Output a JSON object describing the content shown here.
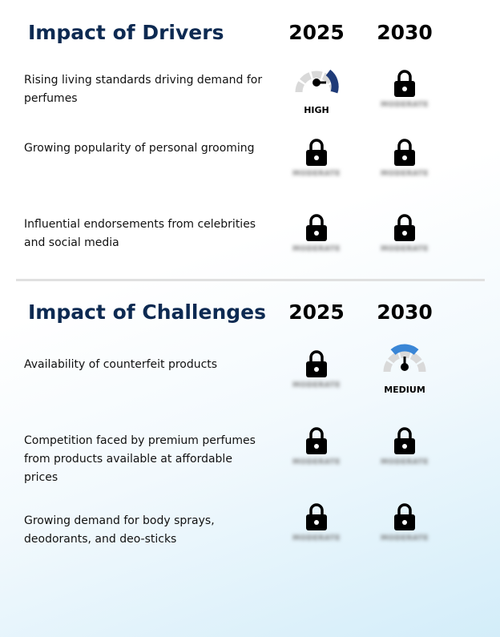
{
  "drivers": {
    "title": "Impact of Drivers",
    "year_a": "2025",
    "year_b": "2030",
    "rows": [
      {
        "label": "Rising living standards driving demand for perfumes",
        "a": "HIGH",
        "b": "MODERATE"
      },
      {
        "label": "Growing popularity of personal grooming",
        "a": "MODERATE",
        "b": "MODERATE"
      },
      {
        "label": "Influential endorsements from celebrities and social media",
        "a": "MODERATE",
        "b": "MODERATE"
      }
    ]
  },
  "challenges": {
    "title": "Impact of Challenges",
    "year_a": "2025",
    "year_b": "2030",
    "rows": [
      {
        "label": "Availability of counterfeit products",
        "a": "MODERATE",
        "b": "MEDIUM"
      },
      {
        "label": "Competition faced by premium perfumes from products available at affordable prices",
        "a": "MODERATE",
        "b": "MODERATE"
      },
      {
        "label": "Growing demand for body sprays, deodorants, and deo-sticks",
        "a": "MODERATE",
        "b": "MODERATE"
      }
    ]
  },
  "colors": {
    "title": "#0d2a52",
    "gauge_high": "#1f3b78",
    "gauge_medium": "#3a86d6",
    "gauge_track": "#d9d9d9"
  }
}
